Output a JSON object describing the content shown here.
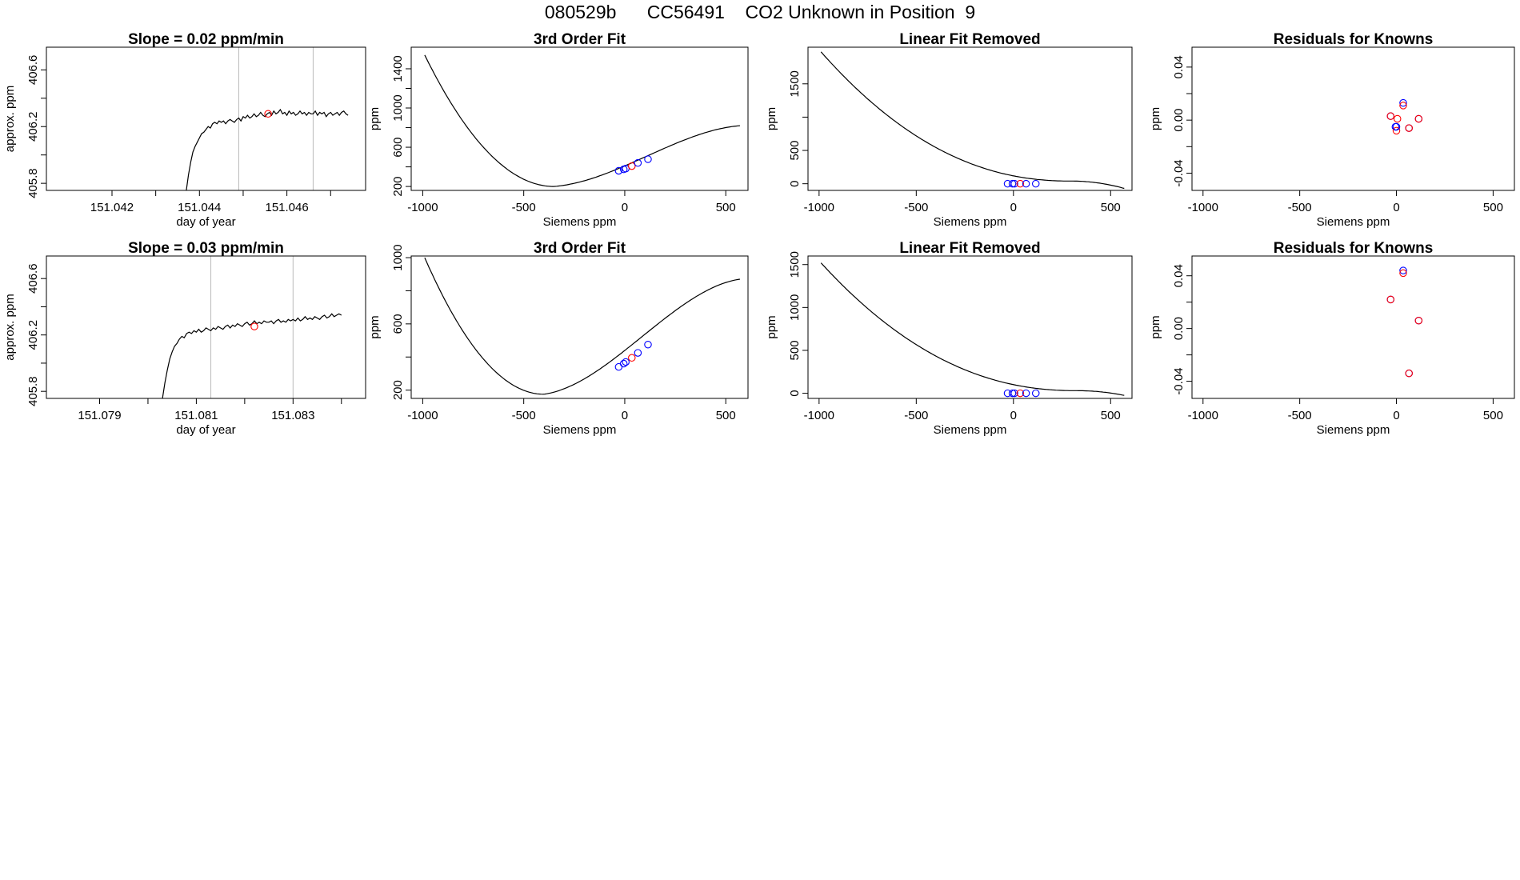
{
  "page": {
    "title": "080529b      CC56491    CO2 Unknown in Position  9",
    "colors": {
      "line": "#000000",
      "axis": "#000000",
      "grid_vline": "#bbbbbb",
      "known": "#0000ff",
      "unknown": "#ff0000",
      "resid": "#8000ff"
    }
  },
  "chart_data": [
    {
      "type": "line",
      "id": "r1-slope",
      "row": 1,
      "col": 1,
      "title": "Slope =  0.02  ppm/min",
      "xlabel": "day of year",
      "ylabel": "approx. ppm",
      "xlim": [
        151.0405,
        151.0478
      ],
      "ylim": [
        405.75,
        406.76
      ],
      "xticks": [
        151.042,
        151.043,
        151.044,
        151.045,
        151.046,
        151.047
      ],
      "xticklabels": [
        "151.042",
        "",
        "151.044",
        "",
        "151.046",
        ""
      ],
      "yticks": [
        405.8,
        406.0,
        406.2,
        406.4,
        406.6
      ],
      "yticklabels": [
        "405.8",
        "",
        "406.2",
        "",
        "406.6"
      ],
      "vlines": [
        151.0449,
        151.0466
      ],
      "series": [
        {
          "name": "trace",
          "color": "#000000",
          "x": [
            151.0437,
            151.04375,
            151.0438,
            151.04385,
            151.0439,
            151.04395,
            151.044,
            151.04405,
            151.0441,
            151.04415,
            151.0442,
            151.04425,
            151.0443,
            151.04435,
            151.0444,
            151.04445,
            151.0445,
            151.04455,
            151.0446,
            151.04465,
            151.0447,
            151.04475,
            151.0448,
            151.04485,
            151.0449,
            151.04495,
            151.045,
            151.04505,
            151.0451,
            151.04515,
            151.0452,
            151.04525,
            151.0453,
            151.04535,
            151.0454,
            151.04545,
            151.0455,
            151.04555,
            151.0456,
            151.04565,
            151.0457,
            151.04575,
            151.0458,
            151.04585,
            151.0459,
            151.04595,
            151.046,
            151.04605,
            151.0461,
            151.04615,
            151.0462,
            151.04625,
            151.0463,
            151.04635,
            151.0464,
            151.04645,
            151.0465,
            151.04655,
            151.0466,
            151.04665,
            151.0467,
            151.04675,
            151.0468,
            151.04685,
            151.0469,
            151.04695,
            151.047,
            151.04705,
            151.0471,
            151.04715,
            151.0472,
            151.04725,
            151.0473,
            151.04735,
            151.0474
          ],
          "y": [
            405.75,
            405.86,
            405.95,
            406.02,
            406.06,
            406.09,
            406.12,
            406.15,
            406.16,
            406.18,
            406.2,
            406.19,
            406.22,
            406.23,
            406.22,
            406.24,
            406.23,
            406.24,
            406.22,
            406.24,
            406.25,
            406.24,
            406.23,
            406.25,
            406.26,
            406.24,
            406.27,
            406.26,
            406.28,
            406.26,
            406.27,
            406.29,
            406.27,
            406.28,
            406.3,
            406.28,
            406.27,
            406.29,
            406.3,
            406.28,
            406.31,
            406.29,
            406.3,
            406.32,
            406.29,
            406.3,
            406.28,
            406.31,
            406.29,
            406.3,
            406.28,
            406.29,
            406.31,
            406.29,
            406.3,
            406.28,
            406.3,
            406.29,
            406.29,
            406.31,
            406.28,
            406.3,
            406.29,
            406.3,
            406.27,
            406.29,
            406.3,
            406.28,
            406.29,
            406.3,
            406.28,
            406.3,
            406.31,
            406.29,
            406.28
          ]
        }
      ],
      "points": [
        {
          "x": 151.04557,
          "y": 406.29,
          "color": "#ff0000"
        }
      ]
    },
    {
      "type": "line",
      "id": "r1-fit",
      "row": 1,
      "col": 2,
      "title": "3rd Order Fit",
      "xlabel": "Siemens ppm",
      "ylabel": "ppm",
      "xlim": [
        -1057,
        610
      ],
      "ylim": [
        160,
        1620
      ],
      "xticks": [
        -1000,
        -500,
        0,
        500
      ],
      "xticklabels": [
        "-1000",
        "-500",
        "0",
        "500"
      ],
      "yticks": [
        200,
        400,
        600,
        800,
        1000,
        1200,
        1400
      ],
      "yticklabels": [
        "200",
        "",
        "600",
        "",
        "1000",
        "",
        "1400"
      ],
      "curve": {
        "kind": "cubic",
        "xrange": [
          -990,
          570
        ],
        "knots_x": [
          -990,
          -350,
          570
        ],
        "knots_y": [
          1540,
          200,
          820
        ]
      },
      "points": [
        {
          "x": -30,
          "y": 360,
          "color": "#0000ff"
        },
        {
          "x": -5,
          "y": 375,
          "color": "#0000ff"
        },
        {
          "x": 5,
          "y": 382,
          "color": "#0000ff"
        },
        {
          "x": 35,
          "y": 408,
          "color": "#ff0000"
        },
        {
          "x": 65,
          "y": 440,
          "color": "#0000ff"
        },
        {
          "x": 115,
          "y": 478,
          "color": "#0000ff"
        }
      ]
    },
    {
      "type": "line",
      "id": "r1-linrem",
      "row": 1,
      "col": 3,
      "title": "Linear Fit Removed",
      "xlabel": "Siemens ppm",
      "ylabel": "ppm",
      "xlim": [
        -1057,
        610
      ],
      "ylim": [
        -100,
        2050
      ],
      "xticks": [
        -1000,
        -500,
        0,
        500
      ],
      "xticklabels": [
        "-1000",
        "-500",
        "0",
        "500"
      ],
      "yticks": [
        0,
        500,
        1000,
        1500
      ],
      "yticklabels": [
        "0",
        "500",
        "",
        "1500"
      ],
      "curve": {
        "kind": "lin_removed",
        "xrange": [
          -990,
          570
        ],
        "knots_x": [
          -990,
          300,
          570
        ],
        "knots_y": [
          1980,
          40,
          -70
        ]
      },
      "points": [
        {
          "x": -30,
          "y": 0,
          "color": "#0000ff"
        },
        {
          "x": -5,
          "y": 0,
          "color": "#0000ff"
        },
        {
          "x": 5,
          "y": 0,
          "color": "#0000ff"
        },
        {
          "x": 35,
          "y": 0,
          "color": "#ff0000"
        },
        {
          "x": 65,
          "y": 0,
          "color": "#0000ff"
        },
        {
          "x": 115,
          "y": 0,
          "color": "#0000ff"
        }
      ]
    },
    {
      "type": "scatter",
      "id": "r1-resid",
      "row": 1,
      "col": 4,
      "title": "Residuals for Knowns",
      "xlabel": "Siemens ppm",
      "ylabel": "ppm",
      "xlim": [
        -1057,
        610
      ],
      "ylim": [
        -0.053,
        0.055
      ],
      "xticks": [
        -1000,
        -500,
        0,
        500
      ],
      "xticklabels": [
        "-1000",
        "-500",
        "0",
        "500"
      ],
      "yticks": [
        -0.04,
        -0.02,
        0.0,
        0.02,
        0.04
      ],
      "yticklabels": [
        "-0.04",
        "",
        "0.00",
        "",
        "0.04"
      ],
      "points": [
        {
          "x": -30,
          "y": 0.003,
          "color": "#0000ff"
        },
        {
          "x": -30,
          "y": 0.003,
          "color": "#ff0000"
        },
        {
          "x": -5,
          "y": -0.005,
          "color": "#0000ff"
        },
        {
          "x": 0,
          "y": -0.008,
          "color": "#ff0000"
        },
        {
          "x": 5,
          "y": 0.001,
          "color": "#ff0000"
        },
        {
          "x": 35,
          "y": 0.013,
          "color": "#0000ff"
        },
        {
          "x": 35,
          "y": 0.011,
          "color": "#ff0000"
        },
        {
          "x": 65,
          "y": -0.006,
          "color": "#0000ff"
        },
        {
          "x": 65,
          "y": -0.006,
          "color": "#ff0000"
        },
        {
          "x": 115,
          "y": 0.001,
          "color": "#0000ff"
        },
        {
          "x": 115,
          "y": 0.001,
          "color": "#ff0000"
        },
        {
          "x": 0,
          "y": -0.005,
          "color": "#0000ff"
        }
      ]
    },
    {
      "type": "line",
      "id": "r2-slope",
      "row": 2,
      "col": 1,
      "title": "Slope =  0.03  ppm/min",
      "xlabel": "day of year",
      "ylabel": "approx. ppm",
      "xlim": [
        151.0779,
        151.0845
      ],
      "ylim": [
        405.75,
        406.76
      ],
      "xticks": [
        151.079,
        151.08,
        151.081,
        151.082,
        151.083,
        151.084
      ],
      "xticklabels": [
        "151.079",
        "",
        "151.081",
        "",
        "151.083",
        ""
      ],
      "yticks": [
        405.8,
        406.0,
        406.2,
        406.4,
        406.6
      ],
      "yticklabels": [
        "405.8",
        "",
        "406.2",
        "",
        "406.6"
      ],
      "vlines": [
        151.0813,
        151.083
      ],
      "series": [
        {
          "name": "trace",
          "color": "#000000",
          "x": [
            151.0803,
            151.08035,
            151.0804,
            151.08045,
            151.0805,
            151.08055,
            151.0806,
            151.08065,
            151.0807,
            151.08075,
            151.0808,
            151.08085,
            151.0809,
            151.08095,
            151.081,
            151.08105,
            151.0811,
            151.08115,
            151.0812,
            151.08125,
            151.0813,
            151.08135,
            151.0814,
            151.08145,
            151.0815,
            151.08155,
            151.0816,
            151.08165,
            151.0817,
            151.08175,
            151.0818,
            151.08185,
            151.0819,
            151.08195,
            151.082,
            151.08205,
            151.0821,
            151.08215,
            151.0822,
            151.08225,
            151.0823,
            151.08235,
            151.0824,
            151.08245,
            151.0825,
            151.08255,
            151.0826,
            151.08265,
            151.0827,
            151.08275,
            151.0828,
            151.08285,
            151.0829,
            151.08295,
            151.083,
            151.08305,
            151.0831,
            151.08315,
            151.0832,
            151.08325,
            151.0833,
            151.08335,
            151.0834,
            151.08345,
            151.0835,
            151.08355,
            151.0836,
            151.08365,
            151.0837,
            151.08375,
            151.0838,
            151.08385,
            151.0839,
            151.08395,
            151.084
          ],
          "y": [
            405.75,
            405.86,
            405.95,
            406.03,
            406.08,
            406.12,
            406.14,
            406.17,
            406.19,
            406.18,
            406.21,
            406.22,
            406.21,
            406.23,
            406.22,
            406.24,
            406.22,
            406.23,
            406.25,
            406.24,
            406.23,
            406.25,
            406.24,
            406.26,
            406.25,
            406.24,
            406.26,
            406.27,
            406.25,
            406.27,
            406.26,
            406.28,
            406.27,
            406.26,
            406.28,
            406.29,
            406.27,
            406.28,
            406.3,
            406.28,
            406.29,
            406.28,
            406.3,
            406.29,
            406.29,
            406.3,
            406.28,
            406.3,
            406.31,
            406.29,
            406.3,
            406.29,
            406.31,
            406.3,
            406.31,
            406.3,
            406.32,
            406.3,
            406.31,
            406.33,
            406.31,
            406.32,
            406.31,
            406.33,
            406.32,
            406.31,
            406.33,
            406.34,
            406.32,
            406.33,
            406.35,
            406.33,
            406.34,
            406.35,
            406.34
          ]
        }
      ],
      "points": [
        {
          "x": 151.0822,
          "y": 406.26,
          "color": "#ff0000"
        }
      ]
    },
    {
      "type": "line",
      "id": "r2-fit",
      "row": 2,
      "col": 2,
      "title": "3rd Order Fit",
      "xlabel": "Siemens ppm",
      "ylabel": "ppm",
      "xlim": [
        -1057,
        610
      ],
      "ylim": [
        150,
        1010
      ],
      "xticks": [
        -1000,
        -500,
        0,
        500
      ],
      "xticklabels": [
        "-1000",
        "-500",
        "0",
        "500"
      ],
      "yticks": [
        200,
        400,
        600,
        800,
        1000
      ],
      "yticklabels": [
        "200",
        "",
        "600",
        "",
        "1000"
      ],
      "curve": {
        "kind": "cubic",
        "xrange": [
          -990,
          570
        ],
        "knots_x": [
          -990,
          -400,
          570
        ],
        "knots_y": [
          1000,
          175,
          870
        ]
      },
      "points": [
        {
          "x": -30,
          "y": 340,
          "color": "#0000ff"
        },
        {
          "x": -5,
          "y": 360,
          "color": "#0000ff"
        },
        {
          "x": 5,
          "y": 370,
          "color": "#0000ff"
        },
        {
          "x": 35,
          "y": 395,
          "color": "#ff0000"
        },
        {
          "x": 65,
          "y": 425,
          "color": "#0000ff"
        },
        {
          "x": 115,
          "y": 475,
          "color": "#0000ff"
        }
      ]
    },
    {
      "type": "line",
      "id": "r2-linrem",
      "row": 2,
      "col": 3,
      "title": "Linear Fit Removed",
      "xlabel": "Siemens ppm",
      "ylabel": "ppm",
      "xlim": [
        -1057,
        610
      ],
      "ylim": [
        -60,
        1600
      ],
      "xticks": [
        -1000,
        -500,
        0,
        500
      ],
      "xticklabels": [
        "-1000",
        "-500",
        "0",
        "500"
      ],
      "yticks": [
        0,
        500,
        1000,
        1500
      ],
      "yticklabels": [
        "0",
        "500",
        "1000",
        "1500"
      ],
      "curve": {
        "kind": "lin_removed",
        "xrange": [
          -990,
          570
        ],
        "knots_x": [
          -990,
          330,
          570
        ],
        "knots_y": [
          1520,
          30,
          -25
        ]
      },
      "points": [
        {
          "x": -30,
          "y": 0,
          "color": "#0000ff"
        },
        {
          "x": -5,
          "y": 0,
          "color": "#0000ff"
        },
        {
          "x": 5,
          "y": 0,
          "color": "#0000ff"
        },
        {
          "x": 35,
          "y": 0,
          "color": "#ff0000"
        },
        {
          "x": 65,
          "y": 0,
          "color": "#0000ff"
        },
        {
          "x": 115,
          "y": 0,
          "color": "#0000ff"
        }
      ]
    },
    {
      "type": "scatter",
      "id": "r2-resid",
      "row": 2,
      "col": 4,
      "title": "Residuals for Knowns",
      "xlabel": "Siemens ppm",
      "ylabel": "ppm",
      "xlim": [
        -1057,
        610
      ],
      "ylim": [
        -0.053,
        0.055
      ],
      "xticks": [
        -1000,
        -500,
        0,
        500
      ],
      "xticklabels": [
        "-1000",
        "-500",
        "0",
        "500"
      ],
      "yticks": [
        -0.04,
        -0.02,
        0.0,
        0.02,
        0.04
      ],
      "yticklabels": [
        "-0.04",
        "",
        "0.00",
        "",
        "0.04"
      ],
      "points": [
        {
          "x": -30,
          "y": 0.022,
          "color": "#0000ff"
        },
        {
          "x": -30,
          "y": 0.022,
          "color": "#ff0000"
        },
        {
          "x": 35,
          "y": 0.044,
          "color": "#0000ff"
        },
        {
          "x": 35,
          "y": 0.042,
          "color": "#ff0000"
        },
        {
          "x": 65,
          "y": -0.034,
          "color": "#0000ff"
        },
        {
          "x": 65,
          "y": -0.034,
          "color": "#ff0000"
        },
        {
          "x": 115,
          "y": 0.006,
          "color": "#0000ff"
        },
        {
          "x": 115,
          "y": 0.006,
          "color": "#ff0000"
        }
      ]
    }
  ]
}
